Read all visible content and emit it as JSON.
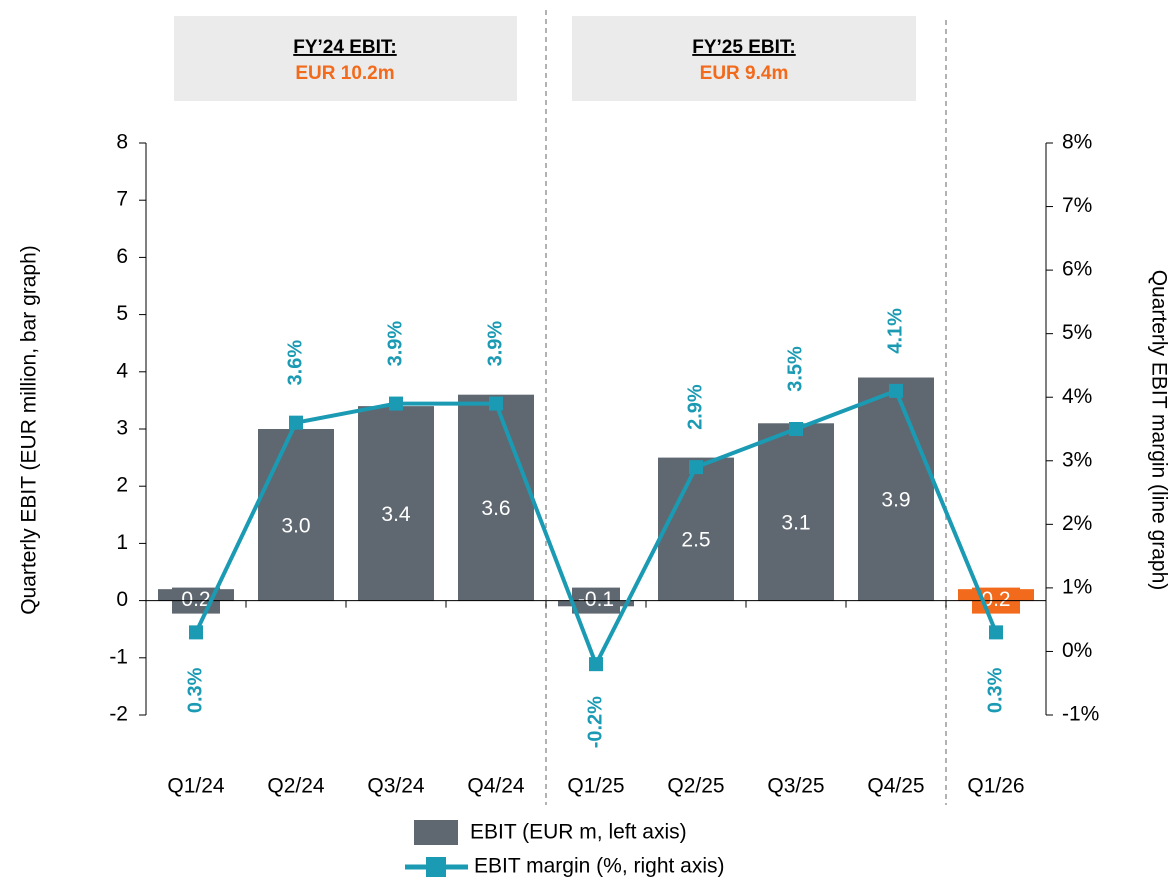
{
  "chart_data": {
    "type": "bar_line",
    "headers": [
      {
        "title": "FY’24 EBIT:",
        "value": "EUR 10.2m"
      },
      {
        "title": "FY’25 EBIT:",
        "value": "EUR 9.4m"
      }
    ],
    "categories": [
      "Q1/24",
      "Q2/24",
      "Q3/24",
      "Q4/24",
      "Q1/25",
      "Q2/25",
      "Q3/25",
      "Q4/25",
      "Q1/26"
    ],
    "series": [
      {
        "name": "EBIT (EUR m, left axis)",
        "type": "bar",
        "color": "#5f6870",
        "colors": [
          "#5f6870",
          "#5f6870",
          "#5f6870",
          "#5f6870",
          "#5f6870",
          "#5f6870",
          "#5f6870",
          "#5f6870",
          "#f26a1b"
        ],
        "values": [
          0.2,
          3.0,
          3.4,
          3.6,
          -0.1,
          2.5,
          3.1,
          3.9,
          0.2
        ],
        "value_labels": [
          "0.2",
          "3.0",
          "3.4",
          "3.6",
          "-0.1",
          "2.5",
          "3.1",
          "3.9",
          "0.2"
        ]
      },
      {
        "name": "EBIT margin (%, right axis)",
        "type": "line",
        "axis": "y2",
        "color": "#1b9ab3",
        "values": [
          0.3,
          3.6,
          3.9,
          3.9,
          -0.2,
          2.9,
          3.5,
          4.1,
          0.3
        ],
        "value_labels": [
          "0.3%",
          "3.6%",
          "3.9%",
          "3.9%",
          "-0.2%",
          "2.9%",
          "3.5%",
          "4.1%",
          "0.3%"
        ]
      }
    ],
    "ylabel": "Quarterly EBIT (EUR million, bar graph)",
    "y2label": "Quarterly EBIT margin (line graph)",
    "ylim": [
      -2,
      8
    ],
    "yticks": [
      -2,
      -1,
      0,
      1,
      2,
      3,
      4,
      5,
      6,
      7,
      8
    ],
    "y2lim": [
      -1,
      8
    ],
    "y2ticks": [
      {
        "value": -1,
        "label": "-1%"
      },
      {
        "value": 0,
        "label": "0%"
      },
      {
        "value": 1,
        "label": "1%"
      },
      {
        "value": 2,
        "label": "2%"
      },
      {
        "value": 3,
        "label": "3%"
      },
      {
        "value": 4,
        "label": "4%"
      },
      {
        "value": 5,
        "label": "5%"
      },
      {
        "value": 6,
        "label": "6%"
      },
      {
        "value": 7,
        "label": "7%"
      },
      {
        "value": 8,
        "label": "8%"
      }
    ]
  }
}
